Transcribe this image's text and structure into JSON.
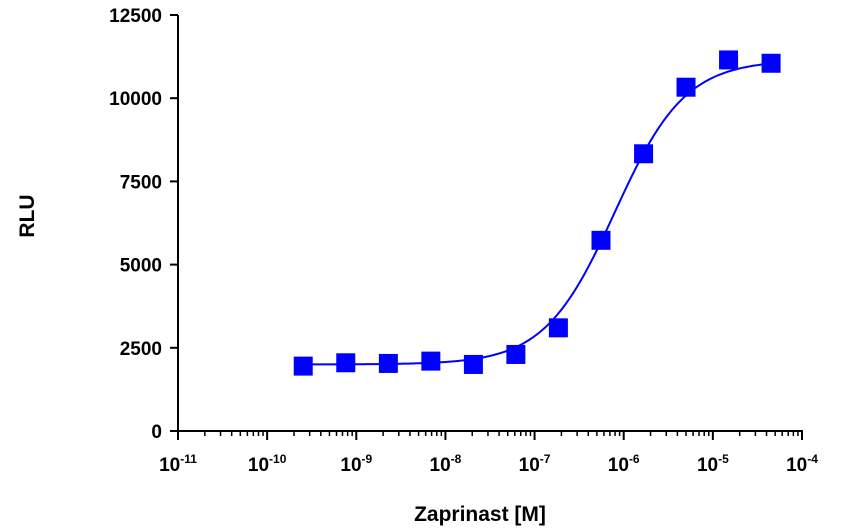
{
  "chart_data": {
    "type": "scatter",
    "xlabel": "Zaprinast [M]",
    "ylabel": "RLU",
    "x_scale": "log",
    "xlim": [
      1e-11,
      0.0001
    ],
    "ylim": [
      0,
      12500
    ],
    "x_ticks": [
      {
        "base": "10",
        "exp": "-11"
      },
      {
        "base": "10",
        "exp": "-10"
      },
      {
        "base": "10",
        "exp": "-9"
      },
      {
        "base": "10",
        "exp": "-8"
      },
      {
        "base": "10",
        "exp": "-7"
      },
      {
        "base": "10",
        "exp": "-6"
      },
      {
        "base": "10",
        "exp": "-5"
      },
      {
        "base": "10",
        "exp": "-4"
      }
    ],
    "y_ticks": [
      "0",
      "2500",
      "5000",
      "7500",
      "10000",
      "12500"
    ],
    "grid": false,
    "series": [
      {
        "color": "#0000ff",
        "marker": "square",
        "points": [
          {
            "x": 2.54e-10,
            "y": 1950
          },
          {
            "x": 7.62e-10,
            "y": 2050
          },
          {
            "x": 2.29e-09,
            "y": 2030
          },
          {
            "x": 6.86e-09,
            "y": 2100
          },
          {
            "x": 2.06e-08,
            "y": 2000
          },
          {
            "x": 6.17e-08,
            "y": 2300
          },
          {
            "x": 1.85e-07,
            "y": 3100
          },
          {
            "x": 5.56e-07,
            "y": 5730
          },
          {
            "x": 1.67e-06,
            "y": 8330
          },
          {
            "x": 5e-06,
            "y": 10330
          },
          {
            "x": 1.5e-05,
            "y": 11150
          },
          {
            "x": 4.5e-05,
            "y": 11050
          }
        ],
        "fit": {
          "type": "four-parameter logistic",
          "bottom": 2000,
          "top": 11150,
          "log_ec50": -6.1,
          "hill_slope": 1.1
        }
      }
    ]
  }
}
